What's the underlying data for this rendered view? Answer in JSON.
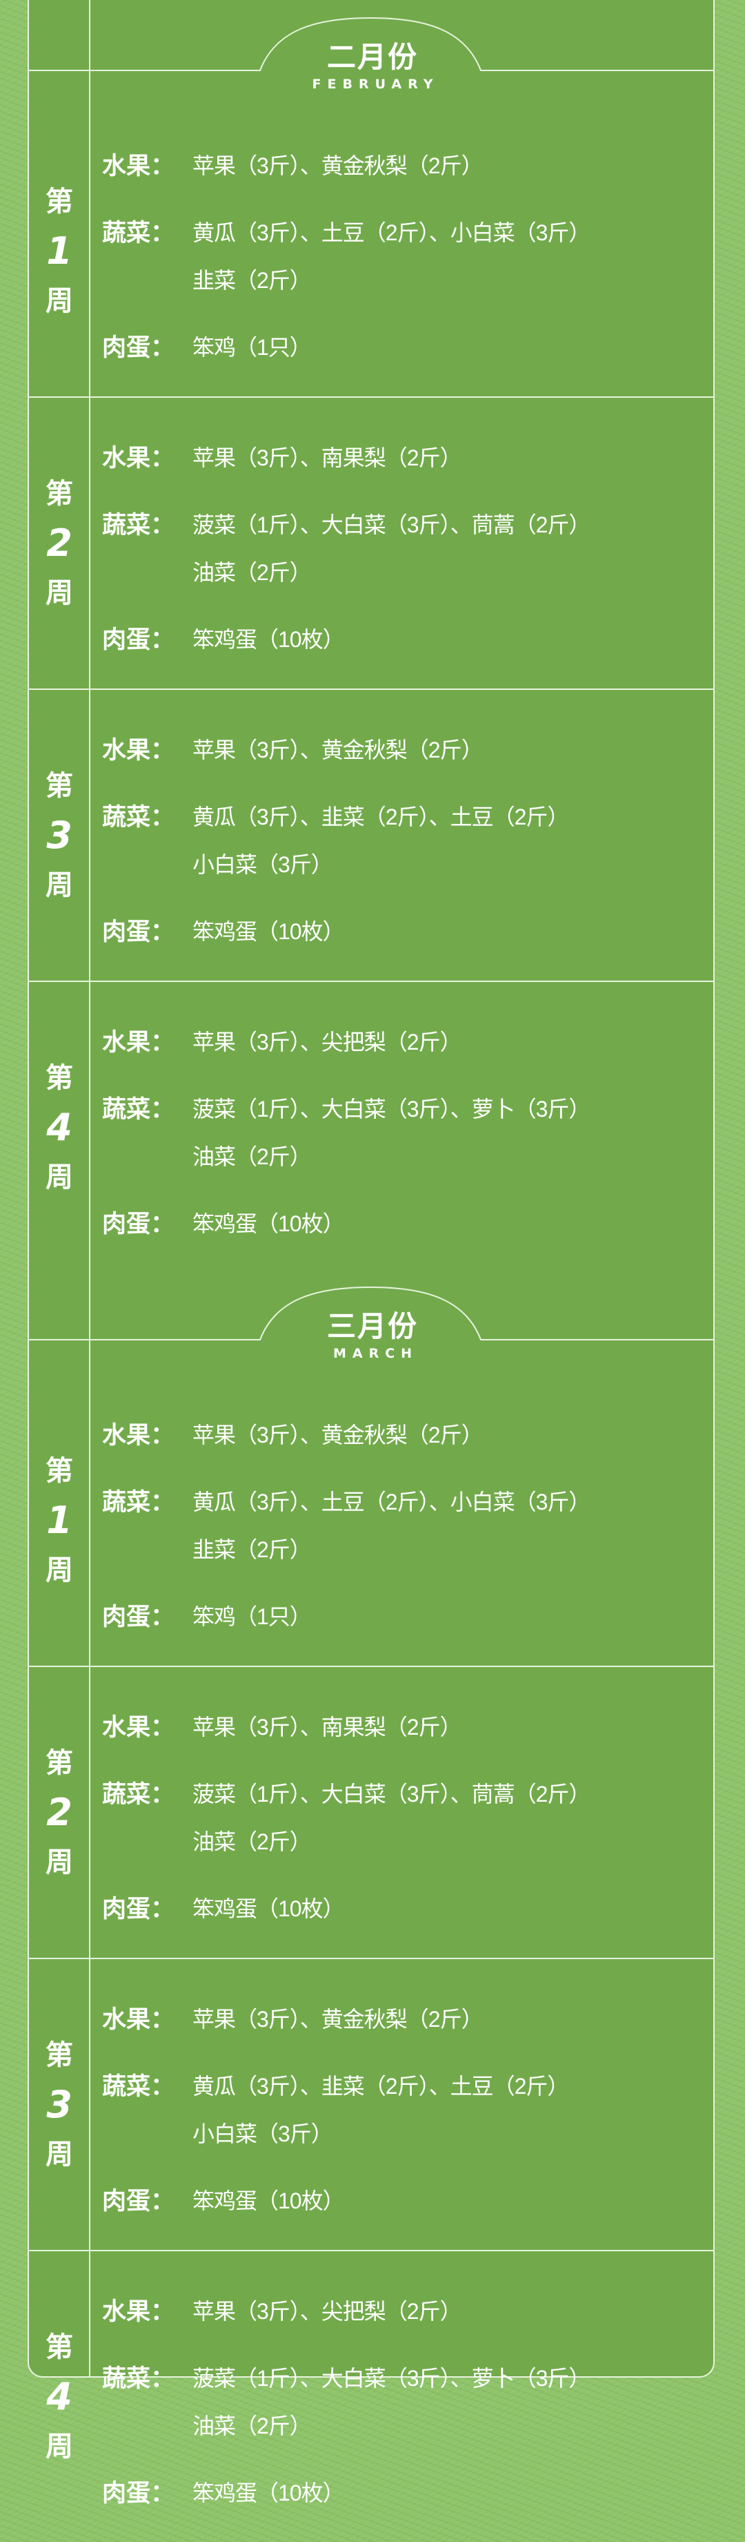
{
  "colors": {
    "card": "#72aa4b",
    "background": "#8fc46a",
    "text": "#ffffff",
    "line": "#e9f3df"
  },
  "months": [
    {
      "title": "二月份",
      "subtitle": "FEBRUARY",
      "weeks": [
        {
          "prefix": "第",
          "number": "1",
          "suffix": "周",
          "groups": [
            {
              "label": "水果：",
              "lines": [
                "苹果（3斤）、黄金秋梨（2斤）"
              ]
            },
            {
              "label": "蔬菜：",
              "lines": [
                "黄瓜（3斤）、土豆（2斤）、小白菜（3斤）",
                "韭菜（2斤）"
              ]
            },
            {
              "label": "肉蛋：",
              "lines": [
                "笨鸡（1只）"
              ]
            }
          ]
        },
        {
          "prefix": "第",
          "number": "2",
          "suffix": "周",
          "groups": [
            {
              "label": "水果：",
              "lines": [
                "苹果（3斤）、南果梨（2斤）"
              ]
            },
            {
              "label": "蔬菜：",
              "lines": [
                "菠菜（1斤）、大白菜（3斤）、茼蒿（2斤）",
                "油菜（2斤）"
              ]
            },
            {
              "label": "肉蛋：",
              "lines": [
                "笨鸡蛋（10枚）"
              ]
            }
          ]
        },
        {
          "prefix": "第",
          "number": "3",
          "suffix": "周",
          "groups": [
            {
              "label": "水果：",
              "lines": [
                "苹果（3斤）、黄金秋梨（2斤）"
              ]
            },
            {
              "label": "蔬菜：",
              "lines": [
                "黄瓜（3斤）、韭菜（2斤）、土豆（2斤）",
                "小白菜（3斤）"
              ]
            },
            {
              "label": "肉蛋：",
              "lines": [
                "笨鸡蛋（10枚）"
              ]
            }
          ]
        },
        {
          "prefix": "第",
          "number": "4",
          "suffix": "周",
          "groups": [
            {
              "label": "水果：",
              "lines": [
                "苹果（3斤）、尖把梨（2斤）"
              ]
            },
            {
              "label": "蔬菜：",
              "lines": [
                "菠菜（1斤）、大白菜（3斤）、萝卜（3斤）",
                "油菜（2斤）"
              ]
            },
            {
              "label": "肉蛋：",
              "lines": [
                "笨鸡蛋（10枚）"
              ]
            }
          ]
        }
      ]
    },
    {
      "title": "三月份",
      "subtitle": "MARCH",
      "weeks": [
        {
          "prefix": "第",
          "number": "1",
          "suffix": "周",
          "groups": [
            {
              "label": "水果：",
              "lines": [
                "苹果（3斤）、黄金秋梨（2斤）"
              ]
            },
            {
              "label": "蔬菜：",
              "lines": [
                "黄瓜（3斤）、土豆（2斤）、小白菜（3斤）",
                "韭菜（2斤）"
              ]
            },
            {
              "label": "肉蛋：",
              "lines": [
                "笨鸡（1只）"
              ]
            }
          ]
        },
        {
          "prefix": "第",
          "number": "2",
          "suffix": "周",
          "groups": [
            {
              "label": "水果：",
              "lines": [
                "苹果（3斤）、南果梨（2斤）"
              ]
            },
            {
              "label": "蔬菜：",
              "lines": [
                "菠菜（1斤）、大白菜（3斤）、茼蒿（2斤）",
                "油菜（2斤）"
              ]
            },
            {
              "label": "肉蛋：",
              "lines": [
                "笨鸡蛋（10枚）"
              ]
            }
          ]
        },
        {
          "prefix": "第",
          "number": "3",
          "suffix": "周",
          "groups": [
            {
              "label": "水果：",
              "lines": [
                "苹果（3斤）、黄金秋梨（2斤）"
              ]
            },
            {
              "label": "蔬菜：",
              "lines": [
                "黄瓜（3斤）、韭菜（2斤）、土豆（2斤）",
                "小白菜（3斤）"
              ]
            },
            {
              "label": "肉蛋：",
              "lines": [
                "笨鸡蛋（10枚）"
              ]
            }
          ]
        },
        {
          "prefix": "第",
          "number": "4",
          "suffix": "周",
          "groups": [
            {
              "label": "水果：",
              "lines": [
                "苹果（3斤）、尖把梨（2斤）"
              ]
            },
            {
              "label": "蔬菜：",
              "lines": [
                "菠菜（1斤）、大白菜（3斤）、萝卜（3斤）",
                "油菜（2斤）"
              ]
            },
            {
              "label": "肉蛋：",
              "lines": [
                "笨鸡蛋（10枚）"
              ]
            }
          ]
        }
      ]
    }
  ]
}
